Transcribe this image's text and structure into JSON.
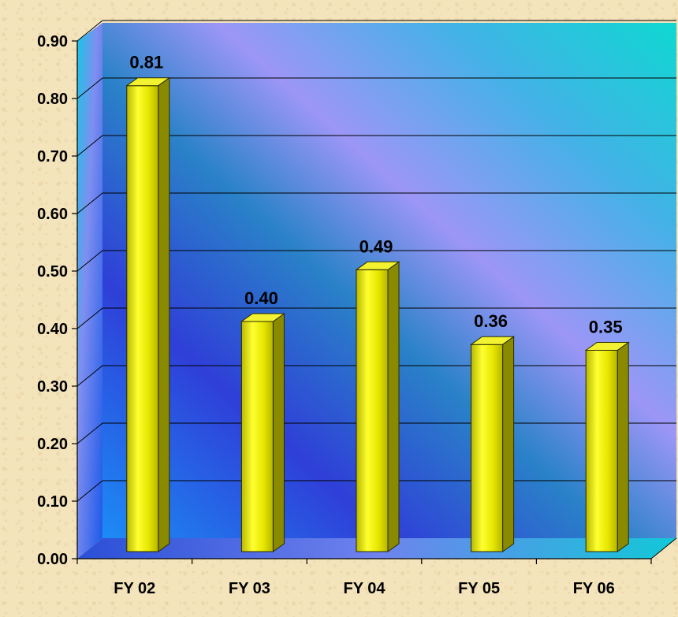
{
  "chart_data": {
    "type": "bar",
    "categories": [
      "FY 02",
      "FY 03",
      "FY 04",
      "FY 05",
      "FY 06"
    ],
    "values": [
      0.81,
      0.4,
      0.49,
      0.36,
      0.35
    ],
    "value_labels": [
      "0.81",
      "0.40",
      "0.49",
      "0.36",
      "0.35"
    ],
    "y_ticks": [
      "0.00",
      "0.10",
      "0.20",
      "0.30",
      "0.40",
      "0.50",
      "0.60",
      "0.70",
      "0.80",
      "0.90"
    ],
    "ylim": [
      0,
      0.9
    ],
    "title": "",
    "xlabel": "",
    "ylabel": "",
    "grid": true,
    "legend": "none",
    "style": "3d",
    "colors": {
      "bar_front": "#e8e800",
      "bar_side": "#8a8a00",
      "bar_top": "#f2f230",
      "background_a": "#2a7bef",
      "background_b": "#9b97f8",
      "background_c": "#12d6d3"
    }
  }
}
